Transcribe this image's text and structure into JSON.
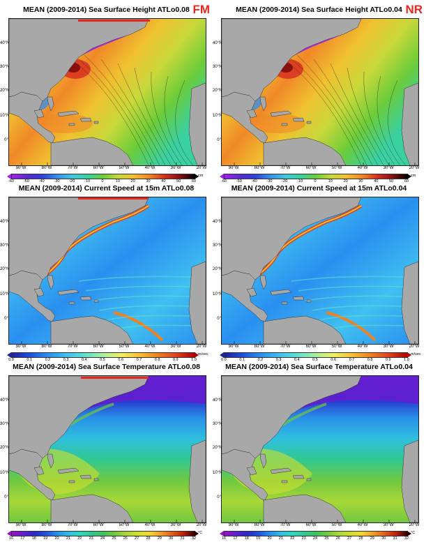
{
  "panels": [
    {
      "title": "MEAN (2009-2014) Sea Surface Height ATLo0.08",
      "tag": "FM",
      "field": "ssh",
      "units": "cm",
      "ticks": [
        "-60",
        "-50",
        "-40",
        "-30",
        "-20",
        "-10",
        "0",
        "10",
        "20",
        "30",
        "40",
        "50",
        "60"
      ]
    },
    {
      "title": "MEAN (2009-2014) Sea Surface Height ATLo0.04",
      "tag": "NR",
      "field": "ssh",
      "units": "cm",
      "ticks": [
        "-60",
        "-50",
        "-40",
        "-30",
        "-20",
        "-10",
        "0",
        "10",
        "20",
        "30",
        "40",
        "50",
        "60"
      ]
    },
    {
      "title": "MEAN (2009-2014) Current Speed at 15m ATLo0.08",
      "tag": "",
      "field": "speed",
      "units": "m/sec",
      "ticks": [
        "0.0",
        "0.1",
        "0.2",
        "0.3",
        "0.4",
        "0.5",
        "0.6",
        "0.7",
        "0.8",
        "0.9",
        "1.0"
      ]
    },
    {
      "title": "MEAN (2009-2014) Current Speed at 15m ATLo0.04",
      "tag": "",
      "field": "speed",
      "units": "m/sec",
      "ticks": [
        "0.0",
        "0.1",
        "0.2",
        "0.3",
        "0.4",
        "0.5",
        "0.6",
        "0.7",
        "0.8",
        "0.9",
        "1.0"
      ]
    },
    {
      "title": "MEAN (2009-2014) Sea Surface Temperature ATLo0.08",
      "tag": "",
      "field": "sst",
      "units": "°C",
      "ticks": [
        "16",
        "17",
        "18",
        "19",
        "20",
        "21",
        "22",
        "23",
        "24",
        "25",
        "26",
        "27",
        "28",
        "29",
        "30",
        "31",
        "32"
      ]
    },
    {
      "title": "MEAN (2009-2014) Sea Surface Temperature ATLo0.04",
      "tag": "",
      "field": "sst",
      "units": "°C",
      "ticks": [
        "16",
        "17",
        "18",
        "19",
        "20",
        "21",
        "22",
        "23",
        "24",
        "25",
        "26",
        "27",
        "28",
        "29",
        "30",
        "31",
        "32"
      ]
    }
  ],
  "lat_labels": [
    "40°N",
    "30°N",
    "20°N",
    "10°N",
    "0°"
  ],
  "lon_labels": [
    "90°W",
    "80°W",
    "70°W",
    "60°W",
    "50°W",
    "40°W",
    "30°W",
    "20°W"
  ],
  "colors": {
    "ssh": [
      "#a020f0",
      "#5b2bd0",
      "#2f3fd8",
      "#3a8ee8",
      "#40c8d8",
      "#3ad0a0",
      "#6ccc3a",
      "#c8d83a",
      "#f0c030",
      "#f08828",
      "#d83020",
      "#8a1010",
      "#000000"
    ],
    "speed": [
      "#2020a0",
      "#2050e0",
      "#2a8ff0",
      "#40c0f0",
      "#60e0d0",
      "#a8f0a0",
      "#f0f060",
      "#f8c030",
      "#f08020",
      "#e04020",
      "#b00000"
    ],
    "sst": [
      "#9a10c8",
      "#6020d0",
      "#2828c8",
      "#2050e0",
      "#2890e8",
      "#30c0e0",
      "#30d8c0",
      "#30c890",
      "#40c060",
      "#70c840",
      "#a8d838",
      "#d0e030",
      "#f0d830",
      "#f0a028",
      "#e06020",
      "#c02010",
      "#300000"
    ],
    "land": "#a8a8a8",
    "accent_red": "#e8281e"
  }
}
